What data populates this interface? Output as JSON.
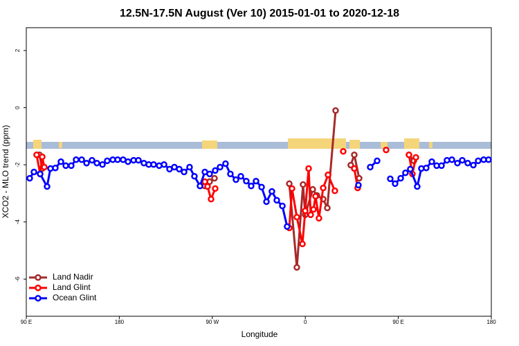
{
  "chart_data": {
    "type": "line",
    "title": "12.5N-17.5N August (Ver 10)   2015-01-01 to 2020-12-18",
    "xlabel": "Longitude",
    "ylabel": "XCO2 - MLO trend (ppm)",
    "xlim": [
      90,
      540
    ],
    "ylim": [
      -7.3,
      2.8
    ],
    "xticks": [
      {
        "value": 90,
        "label": "90 E"
      },
      180,
      {
        "value": 270,
        "label": "90 W"
      },
      {
        "value": 360,
        "label": "0"
      },
      {
        "value": 450,
        "label": "90 E"
      },
      {
        "value": 540,
        "label": "180"
      }
    ],
    "yticks": [
      -6,
      -4,
      -2,
      0,
      2
    ],
    "legend": "bottom-left",
    "series": [
      {
        "name": "Land Nadir",
        "color": "#a52a2a",
        "x": [
          102.7,
          105.4,
          null,
          262.8,
          267.4,
          272.1,
          null,
          344.5,
          351.8,
          357.8,
          359.9,
          367.2,
          371.2,
          377.3,
          381.3,
          389.3,
          null,
          404.0,
          407.4,
          412.1,
          null,
          460.3,
          465.0
        ],
        "values": [
          -1.65,
          -2.13,
          null,
          -2.74,
          -2.59,
          -2.47,
          null,
          -2.66,
          -5.59,
          -2.69,
          -3.75,
          -2.86,
          -3.07,
          -3.2,
          -3.51,
          -0.1,
          null,
          -2.01,
          -1.65,
          -2.47,
          null,
          -1.65,
          -1.86
        ]
      },
      {
        "name": "Land Glint",
        "color": "#ff0000",
        "x": [
          100.0,
          103.4,
          105.4,
          107.4,
          null,
          262.8,
          265.4,
          268.8,
          272.8,
          null,
          344.5,
          347.1,
          351.8,
          357.2,
          359.9,
          363.2,
          365.2,
          367.9,
          369.9,
          373.2,
          377.3,
          382.0,
          388.6,
          null,
          396.7,
          null,
          407.4,
          410.7,
          null,
          438.2,
          null,
          460.3,
          463.6,
          467.0
        ],
        "values": [
          -1.65,
          -2.32,
          -1.72,
          -2.08,
          null,
          -2.59,
          -2.76,
          -3.2,
          -2.83,
          null,
          -4.21,
          -2.83,
          -3.83,
          -4.77,
          -3.61,
          -2.13,
          -3.75,
          -3.56,
          -3.1,
          -3.87,
          -2.81,
          -2.35,
          -2.91,
          null,
          -1.53,
          null,
          -2.13,
          -2.81,
          null,
          -1.48,
          null,
          -1.65,
          -2.32,
          -1.74
        ]
      },
      {
        "name": "Ocean Glint",
        "color": "#0000ff",
        "x": [
          93.3,
          97.4,
          103.4,
          110.1,
          113.4,
          118.1,
          123.5,
          128.2,
          133.5,
          138.2,
          143.6,
          148.3,
          153.6,
          158.3,
          163.7,
          168.3,
          173.7,
          178.4,
          183.7,
          188.4,
          193.8,
          198.5,
          203.8,
          208.5,
          213.2,
          218.6,
          223.3,
          228.6,
          233.3,
          238.0,
          242.7,
          248.0,
          252.7,
          258.1,
          262.8,
          267.4,
          272.8,
          277.5,
          282.8,
          287.5,
          292.9,
          297.6,
          302.9,
          307.6,
          312.3,
          317.7,
          322.4,
          327.7,
          332.4,
          337.8,
          342.4,
          null,
          411.4,
          null,
          422.8,
          429.5,
          null,
          442.2,
          446.9,
          452.3,
          456.9,
          461.6,
          468.3,
          472.3,
          477.0,
          482.4,
          487.1,
          491.8,
          497.1,
          501.8,
          507.2,
          511.9,
          517.2,
          522.6,
          527.3,
          532.6,
          537.3
        ],
        "values": [
          -2.47,
          -2.25,
          -2.32,
          -2.76,
          -2.13,
          -2.11,
          -1.89,
          -2.03,
          -2.03,
          -1.82,
          -1.82,
          -1.94,
          -1.84,
          -1.94,
          -1.99,
          -1.86,
          -1.82,
          -1.82,
          -1.82,
          -1.89,
          -1.84,
          -1.84,
          -1.94,
          -1.99,
          -1.99,
          -2.03,
          -1.99,
          -2.15,
          -2.08,
          -2.15,
          -2.25,
          -2.08,
          -2.4,
          -2.74,
          -2.25,
          -2.32,
          -2.2,
          -2.08,
          -1.96,
          -2.32,
          -2.52,
          -2.4,
          -2.57,
          -2.74,
          -2.57,
          -2.78,
          -3.29,
          -2.93,
          -3.24,
          -3.44,
          -4.16,
          null,
          -2.71,
          null,
          -2.08,
          -1.86,
          null,
          -2.49,
          -2.66,
          -2.47,
          -2.28,
          -2.15,
          -2.76,
          -2.13,
          -2.11,
          -1.89,
          -2.03,
          -2.03,
          -1.84,
          -1.82,
          -1.94,
          -1.84,
          -1.94,
          -2.01,
          -1.86,
          -1.82,
          -1.82
        ]
      }
    ]
  }
}
